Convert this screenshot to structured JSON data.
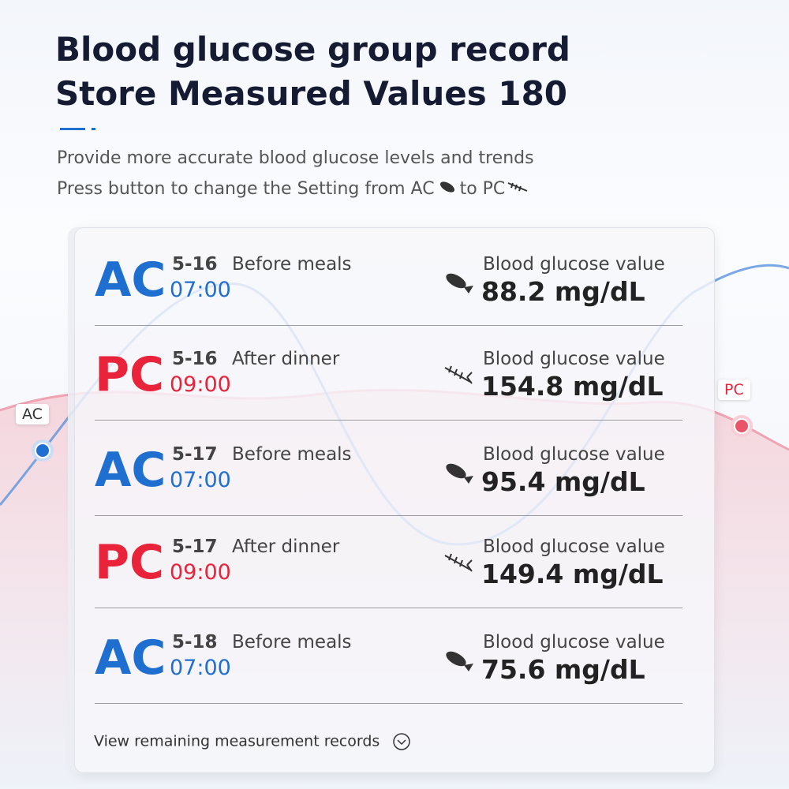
{
  "header": {
    "title_lines": [
      "Blood glucose group record",
      "Store Measured Values 180"
    ],
    "subtitle_lines": [
      "Provide more accurate blood glucose levels and trends",
      "Press button to change the Setting from AC",
      "to PC"
    ]
  },
  "background": {
    "ac_label": "AC",
    "pc_label": "PC"
  },
  "records": [
    {
      "mode": "AC",
      "date": "5-16",
      "meal": "Before meals",
      "time": "07:00",
      "label": "Blood glucose value",
      "value": "88.2 mg/dL"
    },
    {
      "mode": "PC",
      "date": "5-16",
      "meal": "After dinner",
      "time": "09:00",
      "label": "Blood glucose value",
      "value": "154.8 mg/dL"
    },
    {
      "mode": "AC",
      "date": "5-17",
      "meal": "Before meals",
      "time": "07:00",
      "label": "Blood glucose value",
      "value": "95.4 mg/dL"
    },
    {
      "mode": "PC",
      "date": "5-17",
      "meal": "After dinner",
      "time": "09:00",
      "label": "Blood glucose value",
      "value": "149.4 mg/dL"
    },
    {
      "mode": "AC",
      "date": "5-18",
      "meal": "Before meals",
      "time": "07:00",
      "label": "Blood glucose value",
      "value": "75.6 mg/dL"
    }
  ],
  "footer": {
    "link": "View remaining measurement records"
  }
}
